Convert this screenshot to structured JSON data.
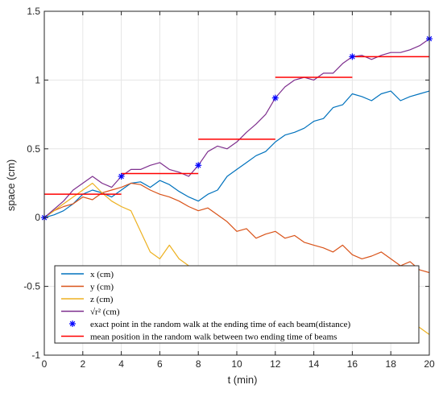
{
  "chart_data": {
    "type": "line",
    "title": "",
    "xlabel": "t (min)",
    "ylabel": "space (cm)",
    "xlim": [
      0,
      20
    ],
    "ylim": [
      -1,
      1.5
    ],
    "xticks": [
      0,
      2,
      4,
      6,
      8,
      10,
      12,
      14,
      16,
      18,
      20
    ],
    "yticks": [
      -1,
      -0.5,
      0,
      0.5,
      1,
      1.5
    ],
    "xtick_labels": [
      "0",
      "2",
      "4",
      "6",
      "8",
      "10",
      "12",
      "14",
      "16",
      "18",
      "20"
    ],
    "ytick_labels": [
      "-1",
      "-0.5",
      "0",
      "0.5",
      "1",
      "1.5"
    ],
    "grid": true,
    "legend_position": "bottom-left",
    "series": [
      {
        "name": "x (cm)",
        "color": "#0072BD",
        "x": [
          0,
          0.5,
          1,
          1.5,
          2,
          2.5,
          3,
          3.5,
          4,
          4.5,
          5,
          5.5,
          6,
          6.5,
          7,
          7.5,
          8,
          8.5,
          9,
          9.5,
          10,
          10.5,
          11,
          11.5,
          12,
          12.5,
          13,
          13.5,
          14,
          14.5,
          15,
          15.5,
          16,
          16.5,
          17,
          17.5,
          18,
          18.5,
          19,
          19.5,
          20
        ],
        "y": [
          0,
          0.02,
          0.05,
          0.1,
          0.17,
          0.2,
          0.18,
          0.15,
          0.2,
          0.25,
          0.26,
          0.22,
          0.27,
          0.24,
          0.19,
          0.15,
          0.12,
          0.17,
          0.2,
          0.3,
          0.35,
          0.4,
          0.45,
          0.48,
          0.55,
          0.6,
          0.62,
          0.65,
          0.7,
          0.72,
          0.8,
          0.82,
          0.9,
          0.88,
          0.85,
          0.9,
          0.92,
          0.85,
          0.88,
          0.9,
          0.92
        ]
      },
      {
        "name": "y (cm)",
        "color": "#D95319",
        "x": [
          0,
          0.5,
          1,
          1.5,
          2,
          2.5,
          3,
          3.5,
          4,
          4.5,
          5,
          5.5,
          6,
          6.5,
          7,
          7.5,
          8,
          8.5,
          9,
          9.5,
          10,
          10.5,
          11,
          11.5,
          12,
          12.5,
          13,
          13.5,
          14,
          14.5,
          15,
          15.5,
          16,
          16.5,
          17,
          17.5,
          18,
          18.5,
          19,
          19.5,
          20
        ],
        "y": [
          0,
          0.05,
          0.08,
          0.1,
          0.15,
          0.13,
          0.18,
          0.2,
          0.22,
          0.25,
          0.24,
          0.2,
          0.17,
          0.15,
          0.12,
          0.08,
          0.05,
          0.07,
          0.02,
          -0.03,
          -0.1,
          -0.08,
          -0.15,
          -0.12,
          -0.1,
          -0.15,
          -0.13,
          -0.18,
          -0.2,
          -0.22,
          -0.25,
          -0.2,
          -0.27,
          -0.3,
          -0.28,
          -0.25,
          -0.3,
          -0.35,
          -0.32,
          -0.38,
          -0.4
        ]
      },
      {
        "name": "z (cm)",
        "color": "#EDB120",
        "x": [
          0,
          0.5,
          1,
          1.5,
          2,
          2.5,
          3,
          3.5,
          4,
          4.5,
          5,
          5.5,
          6,
          6.5,
          7,
          7.5,
          8,
          8.5,
          9,
          9.5,
          10,
          10.5,
          11,
          11.5,
          12,
          12.5,
          13,
          13.5,
          14,
          14.5,
          15,
          15.5,
          16,
          16.5,
          17,
          17.5,
          18,
          18.5,
          19,
          19.5,
          20
        ],
        "y": [
          0,
          0.05,
          0.1,
          0.15,
          0.2,
          0.25,
          0.18,
          0.12,
          0.08,
          0.05,
          -0.1,
          -0.25,
          -0.3,
          -0.2,
          -0.3,
          -0.35,
          -0.4,
          -0.45,
          -0.5,
          -0.48,
          -0.55,
          -0.5,
          -0.6,
          -0.55,
          -0.62,
          -0.6,
          -0.65,
          -0.7,
          -0.62,
          -0.6,
          -0.55,
          -0.62,
          -0.6,
          -0.58,
          -0.65,
          -0.7,
          -0.68,
          -0.72,
          -0.75,
          -0.8,
          -0.85
        ]
      },
      {
        "name": "√r² (cm)",
        "color": "#7E2F8E",
        "x": [
          0,
          0.5,
          1,
          1.5,
          2,
          2.5,
          3,
          3.5,
          4,
          4.5,
          5,
          5.5,
          6,
          6.5,
          7,
          7.5,
          8,
          8.5,
          9,
          9.5,
          10,
          10.5,
          11,
          11.5,
          12,
          12.5,
          13,
          13.5,
          14,
          14.5,
          15,
          15.5,
          16,
          16.5,
          17,
          17.5,
          18,
          18.5,
          19,
          19.5,
          20
        ],
        "y": [
          0,
          0.06,
          0.12,
          0.2,
          0.25,
          0.3,
          0.25,
          0.22,
          0.3,
          0.35,
          0.35,
          0.38,
          0.4,
          0.35,
          0.33,
          0.3,
          0.38,
          0.48,
          0.52,
          0.5,
          0.55,
          0.62,
          0.68,
          0.75,
          0.87,
          0.95,
          1.0,
          1.02,
          1.0,
          1.05,
          1.05,
          1.12,
          1.17,
          1.18,
          1.15,
          1.18,
          1.2,
          1.2,
          1.22,
          1.25,
          1.3
        ]
      }
    ],
    "markers": {
      "name": "exact point in the random walk at the ending time of each beam(distance)",
      "color": "#0000FF",
      "x": [
        0,
        4,
        8,
        12,
        16,
        20
      ],
      "y": [
        0,
        0.3,
        0.38,
        0.87,
        1.17,
        1.3
      ]
    },
    "mean_segments": {
      "name": "mean position in the random walk between two ending time of beams",
      "color": "#FF0000",
      "segments": [
        {
          "x0": 0,
          "x1": 4,
          "y": 0.17
        },
        {
          "x0": 4,
          "x1": 8,
          "y": 0.32
        },
        {
          "x0": 8,
          "x1": 12,
          "y": 0.57
        },
        {
          "x0": 12,
          "x1": 16,
          "y": 1.02
        },
        {
          "x0": 16,
          "x1": 20,
          "y": 1.17
        }
      ]
    },
    "legend": [
      {
        "label": "x (cm)",
        "kind": "line",
        "color": "#0072BD"
      },
      {
        "label": "y (cm)",
        "kind": "line",
        "color": "#D95319"
      },
      {
        "label": "z (cm)",
        "kind": "line",
        "color": "#EDB120"
      },
      {
        "label": "√r² (cm)",
        "kind": "line",
        "color": "#7E2F8E"
      },
      {
        "label": "exact point in the random walk at the ending time of each beam(distance)",
        "kind": "marker",
        "color": "#0000FF"
      },
      {
        "label": "mean position in the random walk between two ending time of beams",
        "kind": "line",
        "color": "#FF0000"
      }
    ]
  }
}
